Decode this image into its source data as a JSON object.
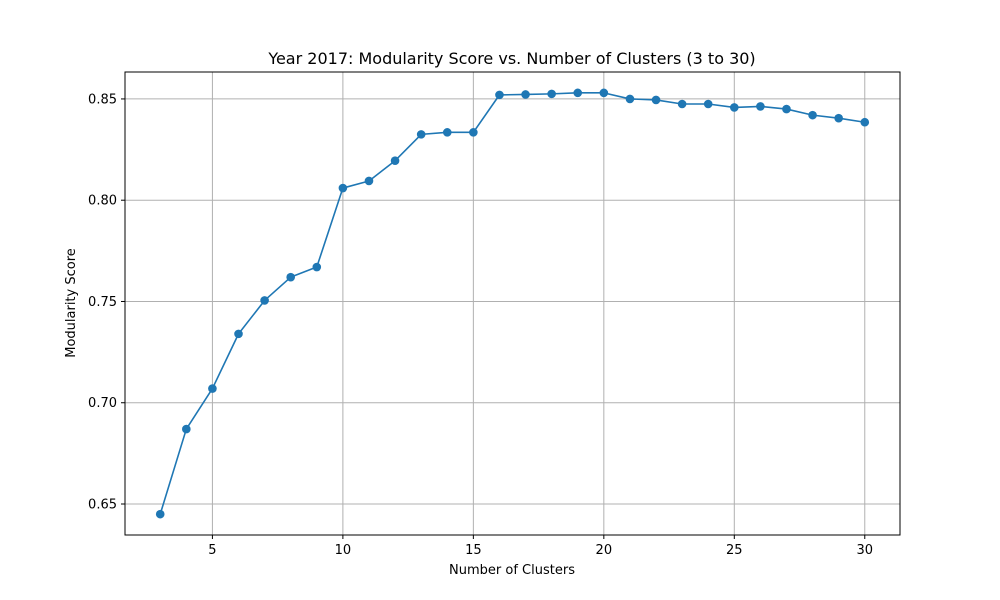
{
  "chart_data": {
    "type": "line",
    "title": "Year 2017: Modularity Score vs. Number of Clusters (3 to 30)",
    "xlabel": "Number of Clusters",
    "ylabel": "Modularity Score",
    "xlim": [
      1.65,
      31.35
    ],
    "ylim": [
      0.6347,
      0.8633
    ],
    "xticks": [
      5,
      10,
      15,
      20,
      25,
      30
    ],
    "yticks": [
      0.65,
      0.7,
      0.75,
      0.8,
      0.85
    ],
    "ytick_labels": [
      "0.65",
      "0.70",
      "0.75",
      "0.80",
      "0.85"
    ],
    "grid": true,
    "color": "#1f77b4",
    "marker": "circle",
    "series": [
      {
        "name": "Modularity Score",
        "x": [
          3,
          4,
          5,
          6,
          7,
          8,
          9,
          10,
          11,
          12,
          13,
          14,
          15,
          16,
          17,
          18,
          19,
          20,
          21,
          22,
          23,
          24,
          25,
          26,
          27,
          28,
          29,
          30
        ],
        "y": [
          0.645,
          0.687,
          0.707,
          0.734,
          0.7505,
          0.762,
          0.767,
          0.806,
          0.8095,
          0.8195,
          0.8325,
          0.8335,
          0.8335,
          0.852,
          0.8522,
          0.8525,
          0.853,
          0.853,
          0.85,
          0.8495,
          0.8475,
          0.8475,
          0.8458,
          0.8463,
          0.845,
          0.842,
          0.8405,
          0.8385
        ]
      }
    ]
  }
}
